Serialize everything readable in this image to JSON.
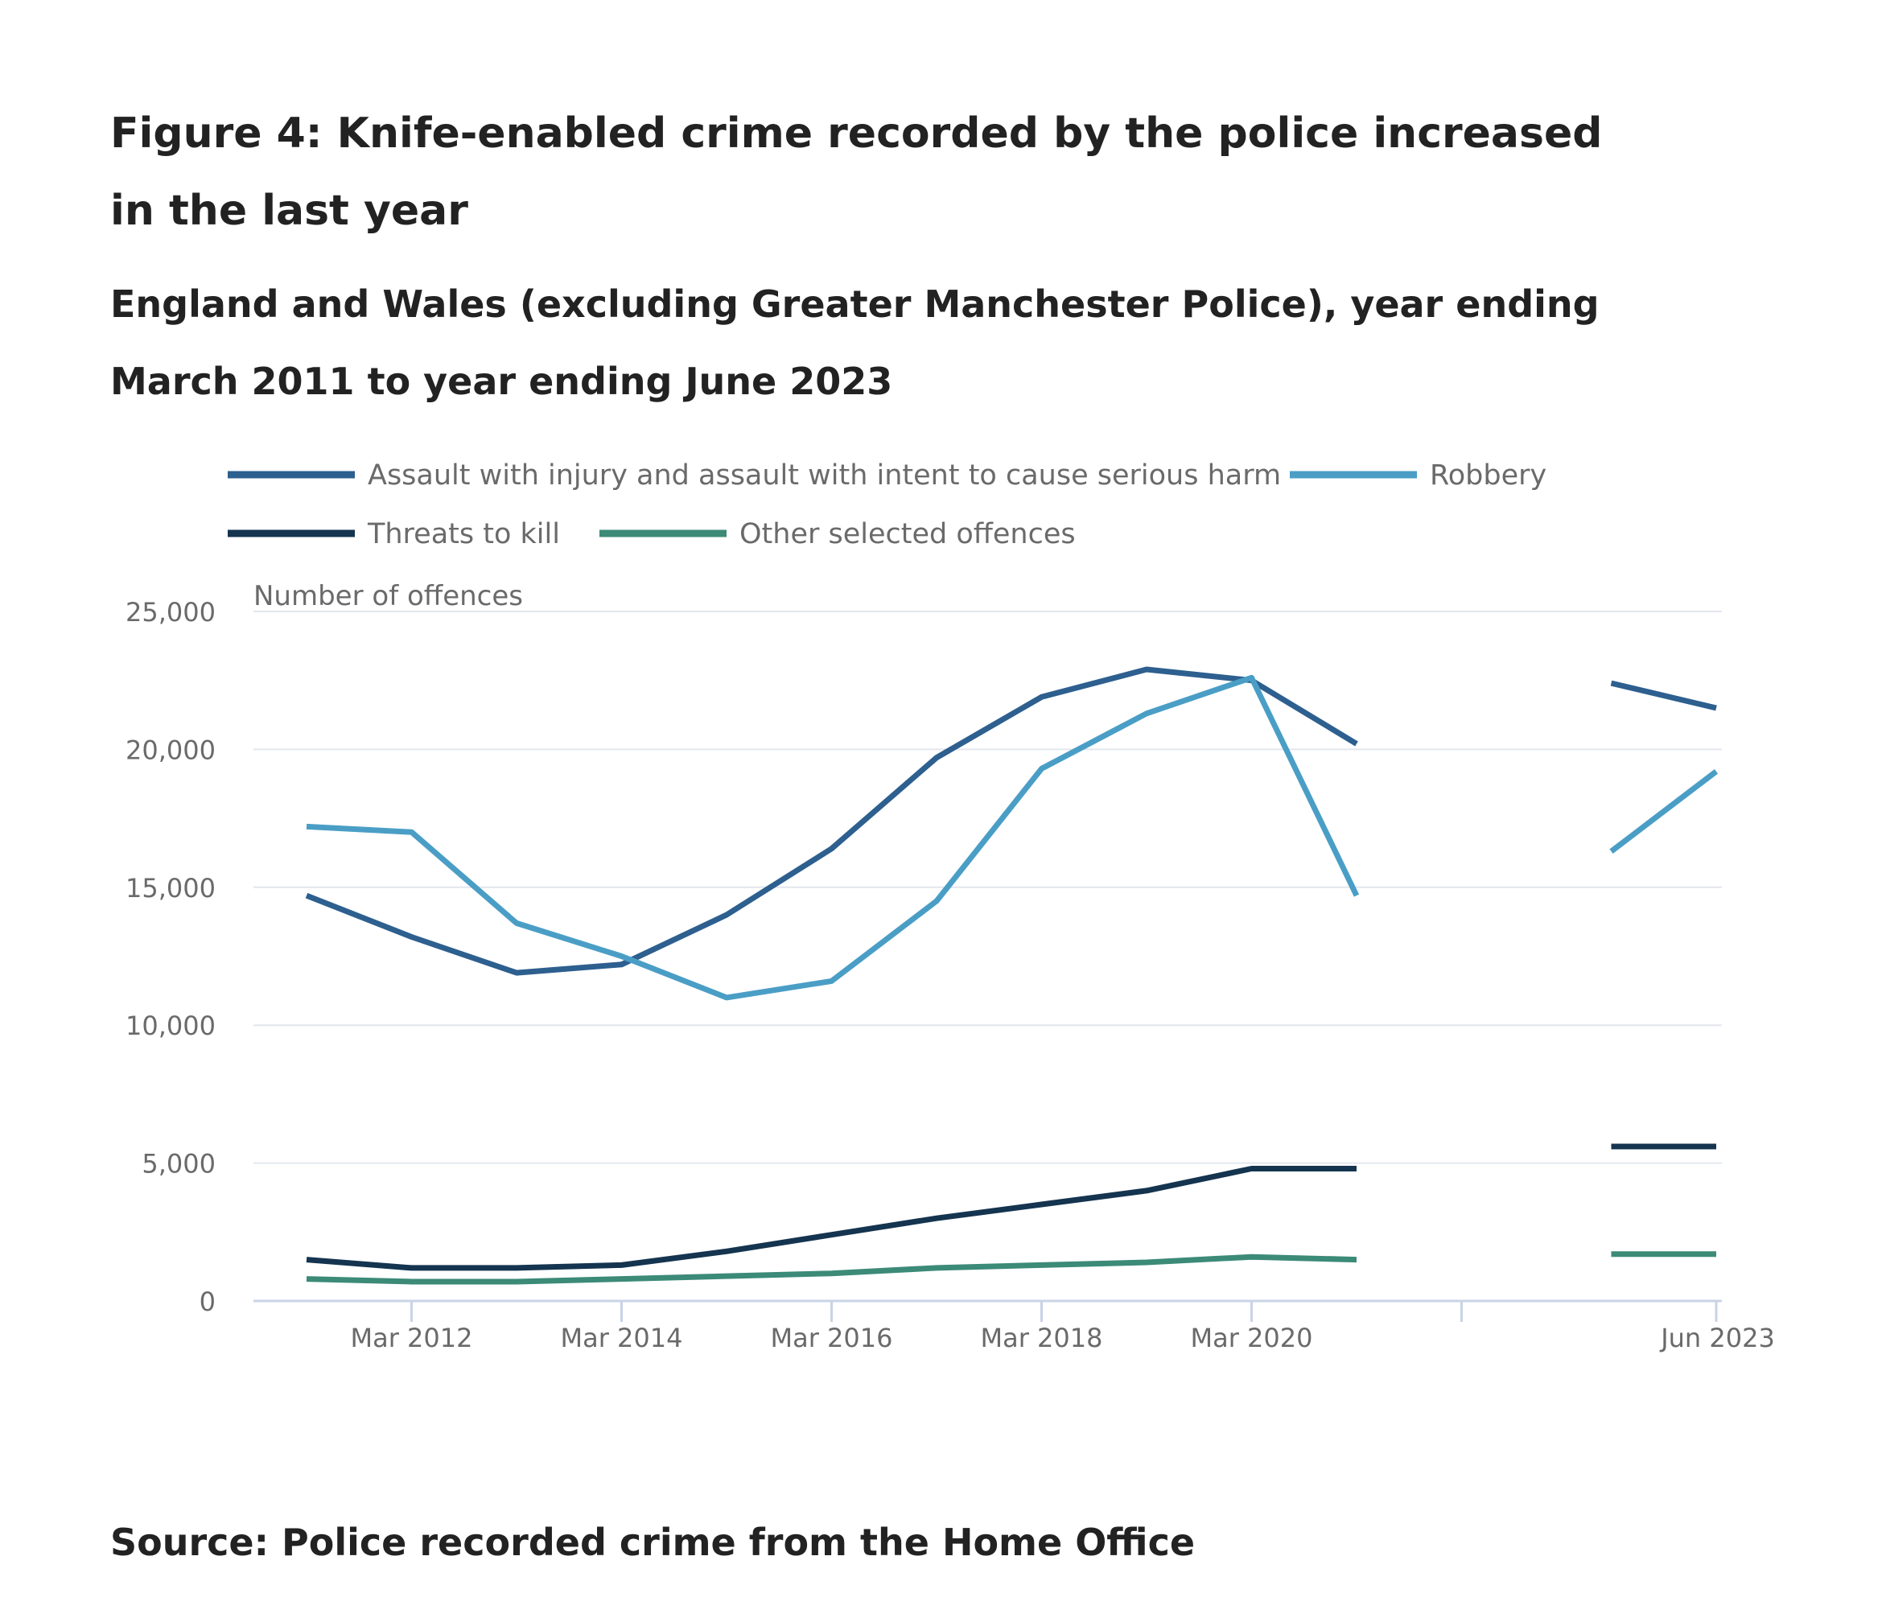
{
  "title": "Figure 4: Knife-enabled crime recorded by the police increased in the last year",
  "subtitle": "England and Wales (excluding Greater Manchester Police), year ending March 2011 to year ending June 2023",
  "source": "Source: Police recorded crime from the Home Office",
  "chart_data": {
    "type": "line",
    "ylabel": "Number of offences",
    "ylim": [
      0,
      25000
    ],
    "yticks": [
      0,
      5000,
      10000,
      15000,
      20000,
      25000
    ],
    "ytick_labels": [
      "0",
      "5,000",
      "10,000",
      "15,000",
      "20,000",
      "25,000"
    ],
    "x": [
      "Mar 2011",
      "Mar 2012",
      "Mar 2013",
      "Mar 2014",
      "Mar 2015",
      "Mar 2016",
      "Mar 2017",
      "Mar 2018",
      "Mar 2019",
      "Mar 2020",
      "Mar 2021",
      "Mar 2022",
      "Jun 2022",
      "Jun 2023"
    ],
    "xtick_labels": [
      "Mar 2012",
      "Mar 2014",
      "Mar 2016",
      "Mar 2018",
      "Mar 2020",
      "Jun 2023"
    ],
    "axis_break_after": "Mar 2021",
    "grid": true,
    "legend_position": "top",
    "series": [
      {
        "name": "Assault with injury and assault with intent to cause serious harm",
        "color": "#2d5f8f",
        "values": [
          14700,
          13200,
          11900,
          12200,
          14000,
          16400,
          19700,
          21900,
          22900,
          22500,
          20200,
          null,
          22400,
          21500
        ]
      },
      {
        "name": "Robbery",
        "color": "#4a9ec6",
        "values": [
          17200,
          17000,
          13700,
          12500,
          11000,
          11600,
          14500,
          19300,
          21300,
          22600,
          14700,
          null,
          16300,
          19200
        ]
      },
      {
        "name": "Threats to kill",
        "color": "#14344f",
        "values": [
          1500,
          1200,
          1200,
          1300,
          1800,
          2400,
          3000,
          3500,
          4000,
          4800,
          4800,
          null,
          5600,
          5600
        ]
      },
      {
        "name": "Other selected offences",
        "color": "#3c8a78",
        "values": [
          800,
          700,
          700,
          800,
          900,
          1000,
          1200,
          1300,
          1400,
          1600,
          1500,
          null,
          1700,
          1700
        ]
      }
    ]
  }
}
